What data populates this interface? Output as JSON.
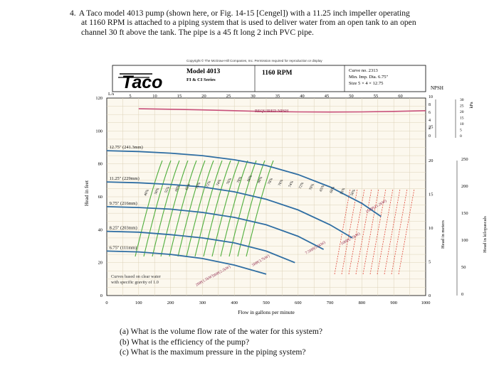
{
  "problem": {
    "number": "4.",
    "line1": "A Taco model 4013 pump (shown here, or Fig. 14-15 [Cengel]) with a 11.25 inch impeller operating",
    "line2": "at 1160 RPM is attached to a piping system that is used to deliver water from an open tank to an open",
    "line3": "channel 30 ft above the tank. The pipe is a 45 ft long 2 inch PVC pipe."
  },
  "copyright": "Copyright © The McGraw-Hill Companies, Inc. Permission required for reproduction or display",
  "chart_header": {
    "logo": "Taco",
    "model": "Model 4013",
    "series": "FI & CI Series",
    "rpm": "1160 RPM",
    "curve_no": "Curve no. 2313",
    "min_imp": "Min. Imp. Dia. 6.75\"",
    "size": "Size 5 × 4 × 12.75",
    "npsh_label": "NPSH",
    "ls_label": "L/s"
  },
  "chart_data": {
    "type": "line",
    "xlabel": "Flow in gallons per minute",
    "ylabel_left": "Head in feet",
    "ylabel_right_m": "Head in meters",
    "ylabel_right_kpa": "Head in kilopascals",
    "npsh_kpa_label": "kPa",
    "xlim": [
      0,
      1000
    ],
    "ylim": [
      0,
      120
    ],
    "x_ticks": [
      "0",
      "100",
      "200",
      "300",
      "400",
      "500",
      "600",
      "700",
      "800",
      "900",
      "1000"
    ],
    "y_ticks": [
      "0",
      "20",
      "40",
      "60",
      "80",
      "100",
      "120"
    ],
    "ls_ticks": [
      "5",
      "10",
      "15",
      "20",
      "25",
      "30",
      "35",
      "40",
      "45",
      "50",
      "55",
      "60"
    ],
    "meter_ticks": [
      "0",
      "5",
      "10",
      "15",
      "20",
      "25"
    ],
    "npsh_ft_ticks": [
      "0",
      "2",
      "4",
      "6",
      "8",
      "10"
    ],
    "npsh_kpa_ticks": [
      "0",
      "5",
      "10",
      "15",
      "20",
      "25",
      "30"
    ],
    "kpa_ticks": [
      "0",
      "50",
      "100",
      "150",
      "200",
      "250"
    ],
    "npsh_curve_label": "REQUIRED NPSH",
    "note": "Curves based on clear water with specific gravity of 1.0",
    "impellers": [
      {
        "label": "12.75\" (241.3mm)",
        "x": [
          0,
          100,
          200,
          300,
          400,
          500,
          600,
          700,
          800,
          860
        ],
        "y": [
          88,
          87.5,
          86.5,
          85,
          82.5,
          79,
          73.5,
          66,
          56,
          48
        ]
      },
      {
        "label": "11.25\" (229mm)",
        "x": [
          0,
          100,
          200,
          300,
          400,
          500,
          600,
          700,
          770
        ],
        "y": [
          69,
          68.5,
          67.5,
          66,
          63,
          58.5,
          52,
          43,
          35
        ]
      },
      {
        "label": "9.75\" (216mm)",
        "x": [
          0,
          100,
          200,
          300,
          400,
          500,
          600,
          680
        ],
        "y": [
          54,
          53.5,
          52.5,
          50.5,
          47.5,
          43,
          36,
          28
        ]
      },
      {
        "label": "8.25\" (203mm)",
        "x": [
          0,
          100,
          200,
          300,
          400,
          500,
          590
        ],
        "y": [
          39,
          38.5,
          37,
          35,
          32,
          27,
          20
        ]
      },
      {
        "label": "6.75\" (111mm)",
        "x": [
          0,
          100,
          200,
          300,
          400,
          500
        ],
        "y": [
          27,
          26.5,
          25,
          22.5,
          18.5,
          13
        ]
      }
    ],
    "npsh_required": {
      "x": [
        100,
        200,
        300,
        400,
        500,
        600,
        700,
        800,
        900,
        1000
      ],
      "y": [
        113.5,
        113.2,
        112.8,
        112.3,
        111.8,
        111.6,
        111.5,
        111.6,
        111.9,
        112.3
      ]
    },
    "efficiency_labels": [
      "40%",
      "50%",
      "55%",
      "60%",
      "65%",
      "70%",
      "72%",
      "74%",
      "76%",
      "78%",
      "80%",
      "80%",
      "78%",
      "76%",
      "74%",
      "72%",
      "70%",
      "65%",
      "60%",
      "55%",
      "50%"
    ],
    "power_labels": [
      "2HP(1.5kW)",
      "3HP(2.2kW)",
      "5HP(3.7kW)",
      "7.5HP(5.6kW)",
      "10HP(7.5kW)",
      "15HP(11.2kW)"
    ]
  },
  "questions": {
    "a": "(a) What is the volume flow rate of the water for this system?",
    "b": "(b) What is the efficiency of the pump?",
    "c": "(c) What is the maximum pressure in the piping system?"
  }
}
